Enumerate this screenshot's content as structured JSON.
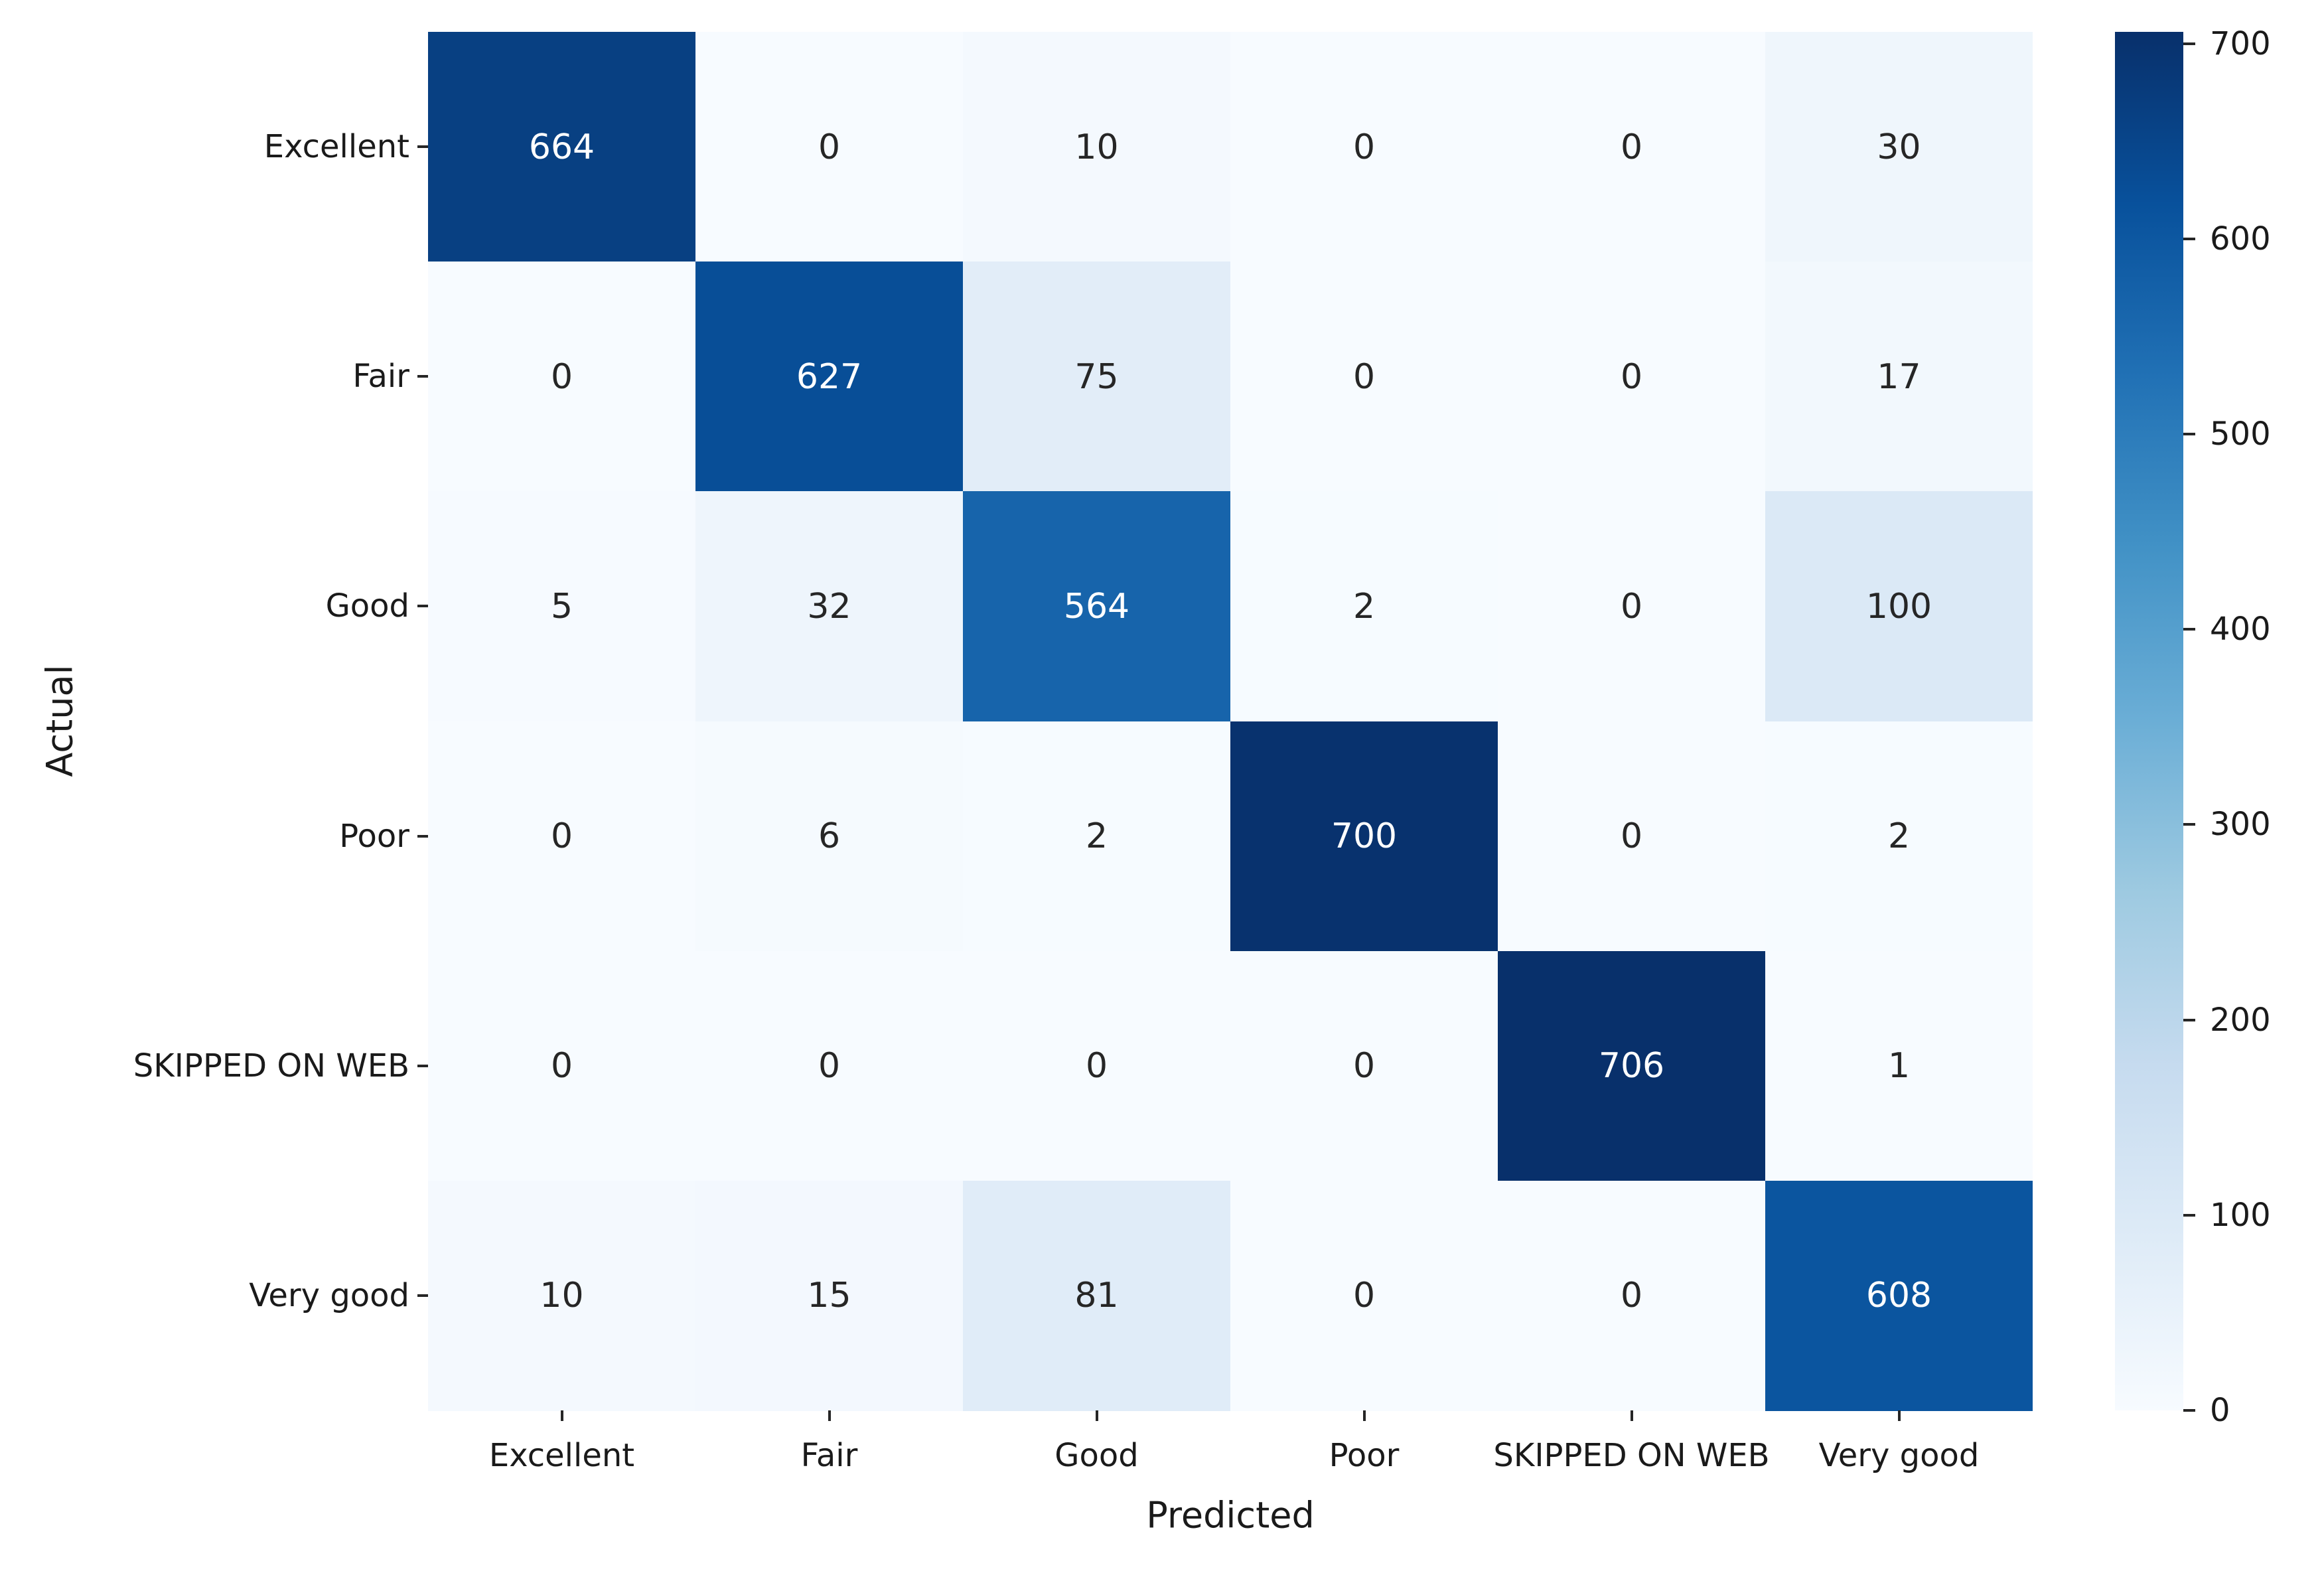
{
  "chart_data": {
    "type": "heatmap",
    "title": "",
    "xlabel": "Predicted",
    "ylabel": "Actual",
    "x_categories": [
      "Excellent",
      "Fair",
      "Good",
      "Poor",
      "SKIPPED ON WEB",
      "Very good"
    ],
    "y_categories": [
      "Excellent",
      "Fair",
      "Good",
      "Poor",
      "SKIPPED ON WEB",
      "Very good"
    ],
    "values": [
      [
        664,
        0,
        10,
        0,
        0,
        30
      ],
      [
        0,
        627,
        75,
        0,
        0,
        17
      ],
      [
        5,
        32,
        564,
        2,
        0,
        100
      ],
      [
        0,
        6,
        2,
        700,
        0,
        2
      ],
      [
        0,
        0,
        0,
        0,
        706,
        1
      ],
      [
        10,
        15,
        81,
        0,
        0,
        608
      ]
    ],
    "vmin": 0,
    "vmax": 706,
    "colormap": "Blues",
    "colorbar_ticks": [
      0,
      100,
      200,
      300,
      400,
      500,
      600,
      700
    ],
    "colorbar_position": "right",
    "grid": false,
    "annotated": true
  },
  "colors": {
    "cmap_low": "#f7fbff",
    "cmap_high": "#08306b",
    "dark_text": "#262626",
    "light_text": "#ffffff",
    "tick_color": "#262626",
    "background": "#ffffff"
  }
}
